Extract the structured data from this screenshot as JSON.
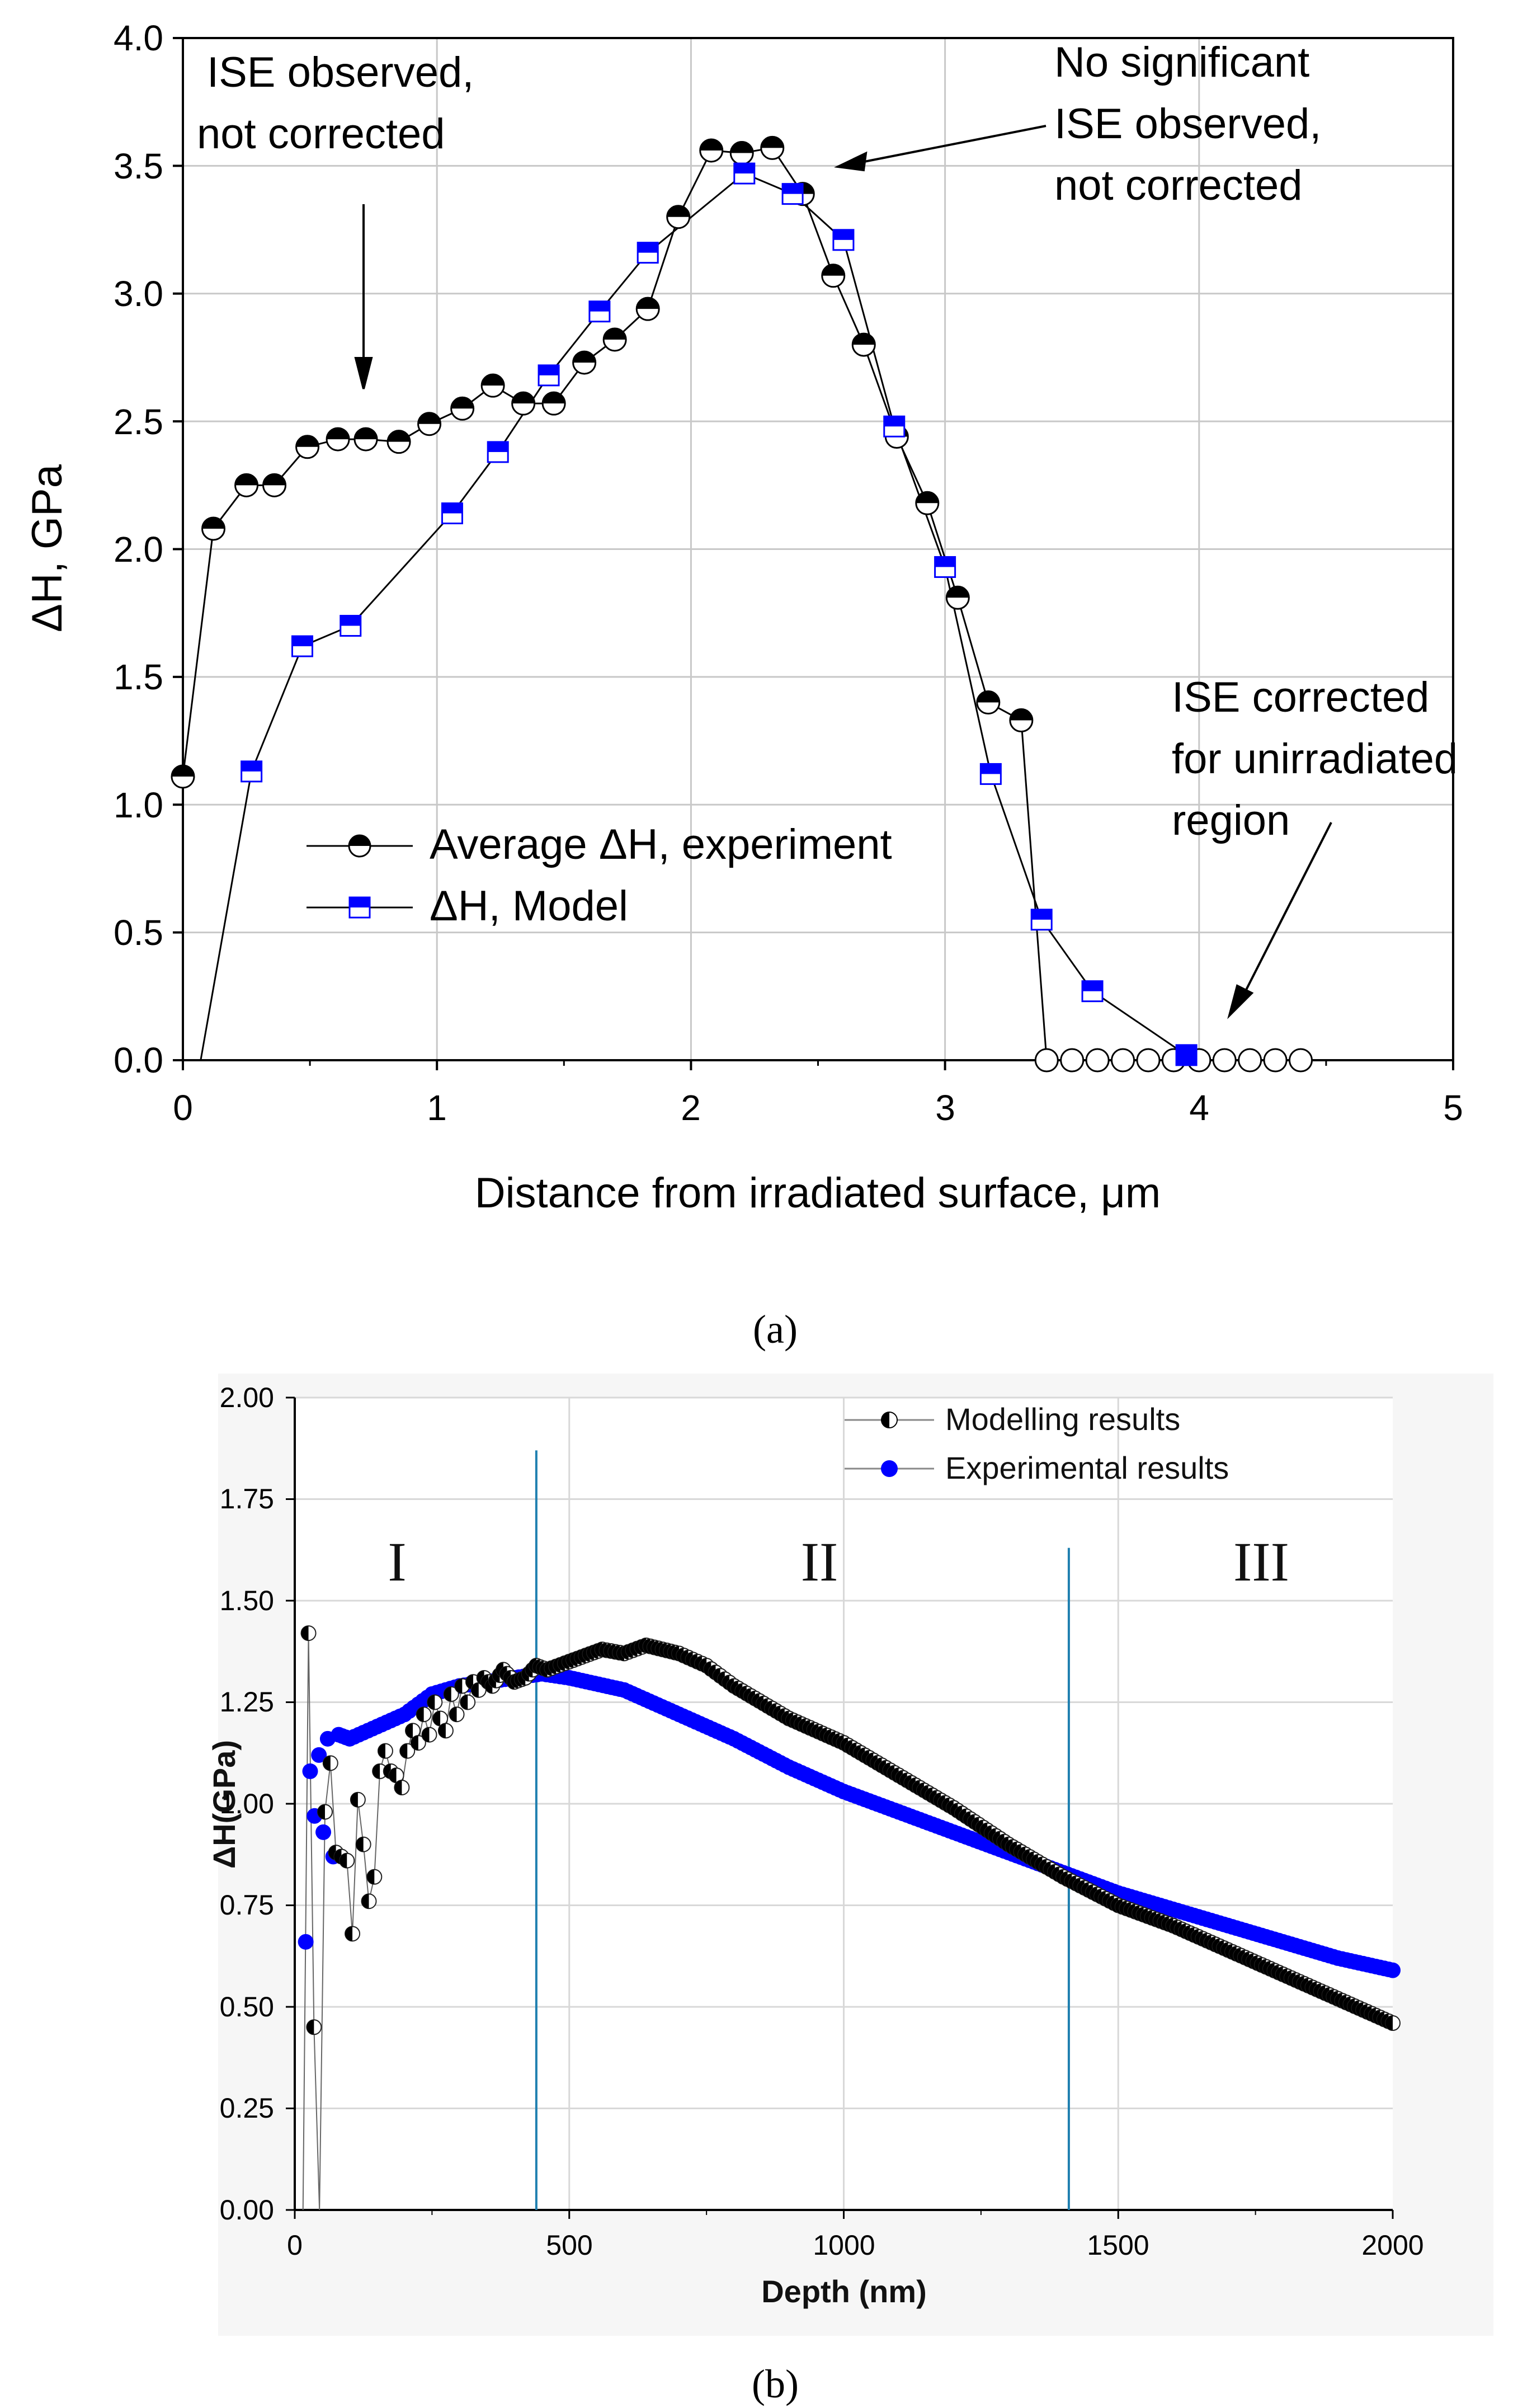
{
  "figure": {
    "caption_a": "(a)",
    "caption_b": "(b)"
  },
  "chart_data": [
    {
      "id": "a",
      "type": "line",
      "title": "",
      "xlabel": "Distance from irradiated surface, μm",
      "ylabel": "ΔH, GPa",
      "xlim": [
        0,
        5
      ],
      "ylim": [
        0,
        4.0
      ],
      "xticks": [
        "0",
        "1",
        "2",
        "3",
        "4",
        "5"
      ],
      "yticks": [
        "0.0",
        "0.5",
        "1.0",
        "1.5",
        "2.0",
        "2.5",
        "3.0",
        "3.5",
        "4.0"
      ],
      "grid": true,
      "legend_position": "lower-left",
      "series": [
        {
          "name": "Average ΔH, experiment",
          "marker": "half-filled-circle",
          "color": "#000000",
          "x": [
            0.0,
            0.12,
            0.25,
            0.36,
            0.49,
            0.61,
            0.72,
            0.85,
            0.97,
            1.1,
            1.22,
            1.34,
            1.46,
            1.58,
            1.7,
            1.83,
            1.95,
            2.08,
            2.2,
            2.32,
            2.44,
            2.56,
            2.68,
            2.81,
            2.93,
            3.05,
            3.17,
            3.3,
            3.4,
            3.5,
            3.6,
            3.7,
            3.8,
            3.9,
            4.0,
            4.1,
            4.2,
            4.3,
            4.4
          ],
          "y": [
            1.11,
            2.08,
            2.25,
            2.25,
            2.4,
            2.43,
            2.43,
            2.42,
            2.49,
            2.55,
            2.64,
            2.57,
            2.57,
            2.73,
            2.82,
            2.94,
            3.3,
            3.56,
            3.55,
            3.57,
            3.39,
            3.07,
            2.8,
            2.44,
            2.18,
            1.81,
            1.4,
            1.33,
            0.0,
            0.0,
            0.0,
            0.0,
            0.0,
            0.0,
            0.0,
            0.0,
            0.0,
            0.0,
            0.0
          ]
        },
        {
          "name": "ΔH, Model",
          "marker": "half-filled-square",
          "color": "#0000ff",
          "x": [
            0.07,
            0.27,
            0.47,
            0.66,
            1.06,
            1.24,
            1.44,
            1.64,
            1.83,
            2.21,
            2.4,
            2.6,
            2.8,
            3.0,
            3.18,
            3.38,
            3.58,
            3.95
          ],
          "y": [
            0.0,
            1.13,
            1.62,
            1.7,
            2.14,
            2.38,
            2.68,
            2.93,
            3.16,
            3.47,
            3.39,
            3.21,
            2.48,
            1.93,
            1.12,
            0.55,
            0.27,
            0.02
          ]
        }
      ],
      "annotations": [
        {
          "lines": [
            "ISE observed,",
            "not corrected"
          ]
        },
        {
          "lines": [
            "No significant",
            "ISE observed,",
            "not corrected"
          ]
        },
        {
          "lines": [
            "ISE corrected",
            "for unirradiated",
            "region"
          ]
        }
      ]
    },
    {
      "id": "b",
      "type": "scatter",
      "title": "",
      "xlabel": "Depth (nm)",
      "ylabel": "ΔH(GPa)",
      "xlim": [
        0,
        2000
      ],
      "ylim": [
        0,
        2.0
      ],
      "xticks": [
        "0",
        "500",
        "1000",
        "1500",
        "2000"
      ],
      "yticks": [
        "0.00",
        "0.25",
        "0.50",
        "0.75",
        "1.00",
        "1.25",
        "1.50",
        "1.75",
        "2.00"
      ],
      "grid": true,
      "legend_position": "top-right",
      "region_labels": [
        "I",
        "II",
        "III"
      ],
      "region_boundaries": [
        440,
        1410
      ],
      "series": [
        {
          "name": "Modelling results",
          "marker": "half-filled-circle",
          "color": "#000000",
          "keypoints_x": [
            15,
            25,
            35,
            45,
            55,
            65,
            75,
            85,
            95,
            105,
            115,
            125,
            135,
            145,
            155,
            165,
            175,
            185,
            195,
            205,
            215,
            225,
            235,
            245,
            255,
            265,
            275,
            285,
            295,
            305,
            315,
            325,
            335,
            345,
            360,
            380,
            400,
            420,
            440,
            460,
            500,
            560,
            600,
            640,
            700,
            750,
            800,
            900,
            1000,
            1100,
            1200,
            1300,
            1400,
            1500,
            1600,
            1700,
            1800,
            1900,
            2000
          ],
          "keypoints_y": [
            0.0,
            1.42,
            0.45,
            0.0,
            0.98,
            1.1,
            0.88,
            0.87,
            0.86,
            0.68,
            1.01,
            0.9,
            0.76,
            0.82,
            1.08,
            1.13,
            1.08,
            1.07,
            1.04,
            1.13,
            1.18,
            1.15,
            1.22,
            1.17,
            1.25,
            1.21,
            1.18,
            1.27,
            1.22,
            1.29,
            1.25,
            1.3,
            1.28,
            1.31,
            1.29,
            1.33,
            1.3,
            1.31,
            1.34,
            1.33,
            1.35,
            1.38,
            1.37,
            1.39,
            1.37,
            1.34,
            1.29,
            1.21,
            1.15,
            1.07,
            0.99,
            0.9,
            0.82,
            0.75,
            0.7,
            0.64,
            0.58,
            0.52,
            0.46
          ],
          "sample_step": 8
        },
        {
          "name": "Experimental results",
          "marker": "filled-circle",
          "color": "#0000ff",
          "keypoints_x": [
            20,
            28,
            36,
            44,
            52,
            60,
            70,
            80,
            100,
            150,
            200,
            250,
            300,
            350,
            400,
            450,
            500,
            600,
            700,
            800,
            900,
            1000,
            1100,
            1200,
            1300,
            1400,
            1500,
            1600,
            1700,
            1800,
            1900,
            2000
          ],
          "keypoints_y": [
            0.66,
            1.08,
            0.97,
            1.12,
            0.93,
            1.16,
            0.87,
            1.17,
            1.16,
            1.19,
            1.22,
            1.27,
            1.29,
            1.3,
            1.31,
            1.32,
            1.31,
            1.28,
            1.22,
            1.16,
            1.09,
            1.03,
            0.98,
            0.93,
            0.88,
            0.83,
            0.78,
            0.74,
            0.7,
            0.66,
            0.62,
            0.59
          ],
          "sample_step": 8
        }
      ]
    }
  ]
}
